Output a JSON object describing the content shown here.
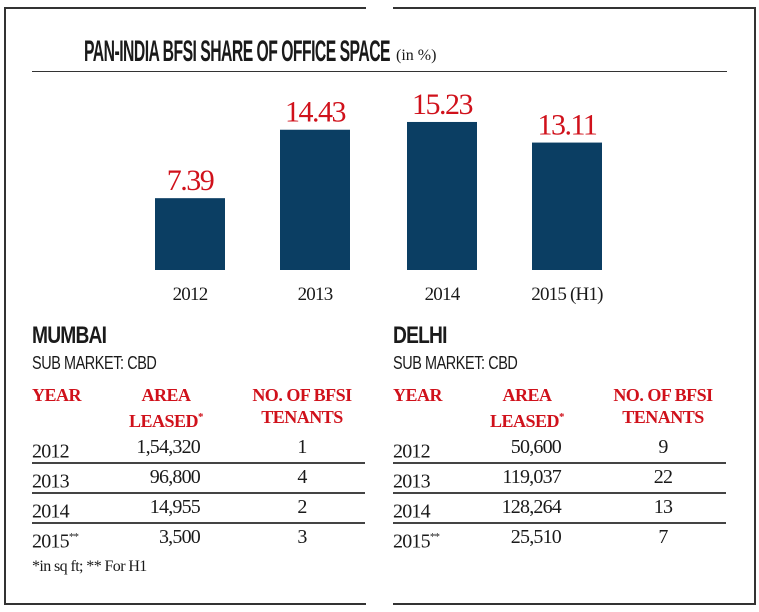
{
  "chart_data": {
    "type": "bar",
    "title": "PAN-INDIA BFSI SHARE OF OFFICE SPACE",
    "unit": "(in %)",
    "categories": [
      "2012",
      "2013",
      "2014",
      "2015 (H1)"
    ],
    "values": [
      7.39,
      14.43,
      15.23,
      13.11
    ],
    "value_labels": [
      "7.39",
      "14.43",
      "15.23",
      "13.11"
    ],
    "bar_color": "#0b3e63",
    "label_color": "#d0111b",
    "grid": false
  },
  "tables": [
    {
      "title": "MUMBAI",
      "sub": "SUB MARKET: CBD",
      "headers": {
        "year": "YEAR",
        "area1": "AREA",
        "area2": "LEASED",
        "area_mark": "*",
        "ten1": "NO. OF BFSI",
        "ten2": "TENANTS"
      },
      "rows": [
        {
          "year": "2012",
          "mark": "",
          "area": "1,54,320",
          "ten": "1"
        },
        {
          "year": "2013",
          "mark": "",
          "area": "96,800",
          "ten": "4"
        },
        {
          "year": "2014",
          "mark": "",
          "area": "14,955",
          "ten": "2"
        },
        {
          "year": "2015",
          "mark": "**",
          "area": "3,500",
          "ten": "3"
        }
      ]
    },
    {
      "title": "DELHI",
      "sub": "SUB MARKET: CBD",
      "headers": {
        "year": "YEAR",
        "area1": "AREA",
        "area2": "LEASED",
        "area_mark": "*",
        "ten1": "NO. OF BFSI",
        "ten2": "TENANTS"
      },
      "rows": [
        {
          "year": "2012",
          "mark": "",
          "area": "50,600",
          "ten": "9"
        },
        {
          "year": "2013",
          "mark": "",
          "area": "119,037",
          "ten": "22"
        },
        {
          "year": "2014",
          "mark": "",
          "area": "128,264",
          "ten": "13"
        },
        {
          "year": "2015",
          "mark": "**",
          "area": "25,510",
          "ten": "7"
        }
      ]
    }
  ],
  "footnote": "*in sq ft; ** For H1"
}
